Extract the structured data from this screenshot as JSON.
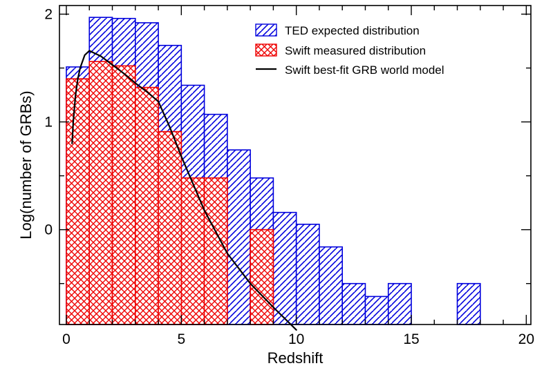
{
  "chart_data": {
    "type": "bar",
    "xlabel": "Redshift",
    "ylabel": "Log(number of GRBs)",
    "xlim": [
      -0.3,
      20.2
    ],
    "ylim": [
      -0.88,
      2.08
    ],
    "x_ticks": [
      0,
      5,
      10,
      15,
      20
    ],
    "x_tick_labels": [
      "0",
      "5",
      "10",
      "15",
      "20"
    ],
    "y_ticks": [
      0,
      1,
      2
    ],
    "y_tick_labels": [
      "0",
      "1",
      "2"
    ],
    "legend_position": "top-right",
    "series": [
      {
        "name": "TED expected distribution",
        "color": "#0000dd",
        "hatch": "diagonal-up",
        "bin_width": 1,
        "bins": [
          {
            "x0": 0,
            "value": 1.51
          },
          {
            "x0": 1,
            "value": 1.97
          },
          {
            "x0": 2,
            "value": 1.96
          },
          {
            "x0": 3,
            "value": 1.92
          },
          {
            "x0": 4,
            "value": 1.71
          },
          {
            "x0": 5,
            "value": 1.34
          },
          {
            "x0": 6,
            "value": 1.07
          },
          {
            "x0": 7,
            "value": 0.74
          },
          {
            "x0": 8,
            "value": 0.48
          },
          {
            "x0": 9,
            "value": 0.16
          },
          {
            "x0": 10,
            "value": 0.05
          },
          {
            "x0": 11,
            "value": -0.16
          },
          {
            "x0": 12,
            "value": -0.5
          },
          {
            "x0": 13,
            "value": -0.62
          },
          {
            "x0": 14,
            "value": -0.5
          },
          {
            "x0": 17,
            "value": -0.5
          }
        ]
      },
      {
        "name": "Swift measured distribution",
        "color": "#ee0000",
        "hatch": "crosshatch",
        "bin_width": 1,
        "bins": [
          {
            "x0": 0,
            "value": 1.4
          },
          {
            "x0": 1,
            "value": 1.56
          },
          {
            "x0": 2,
            "value": 1.52
          },
          {
            "x0": 3,
            "value": 1.32
          },
          {
            "x0": 4,
            "value": 0.91
          },
          {
            "x0": 5,
            "value": 0.48
          },
          {
            "x0": 6,
            "value": 0.48
          },
          {
            "x0": 8,
            "value": 0.0
          }
        ]
      },
      {
        "name": "Swift best-fit GRB world model",
        "color": "#000000",
        "type": "line",
        "x": [
          0.25,
          0.3,
          0.4,
          0.5,
          0.6,
          0.8,
          1.0,
          1.5,
          2.0,
          2.5,
          3.0,
          3.5,
          4.0,
          4.5,
          5.0,
          6.0,
          7.0,
          8.0,
          9.0,
          10.0
        ],
        "y": [
          0.8,
          1.0,
          1.25,
          1.4,
          1.5,
          1.62,
          1.66,
          1.61,
          1.53,
          1.45,
          1.36,
          1.28,
          1.19,
          0.95,
          0.68,
          0.18,
          -0.22,
          -0.5,
          -0.72,
          -0.93
        ]
      }
    ]
  }
}
